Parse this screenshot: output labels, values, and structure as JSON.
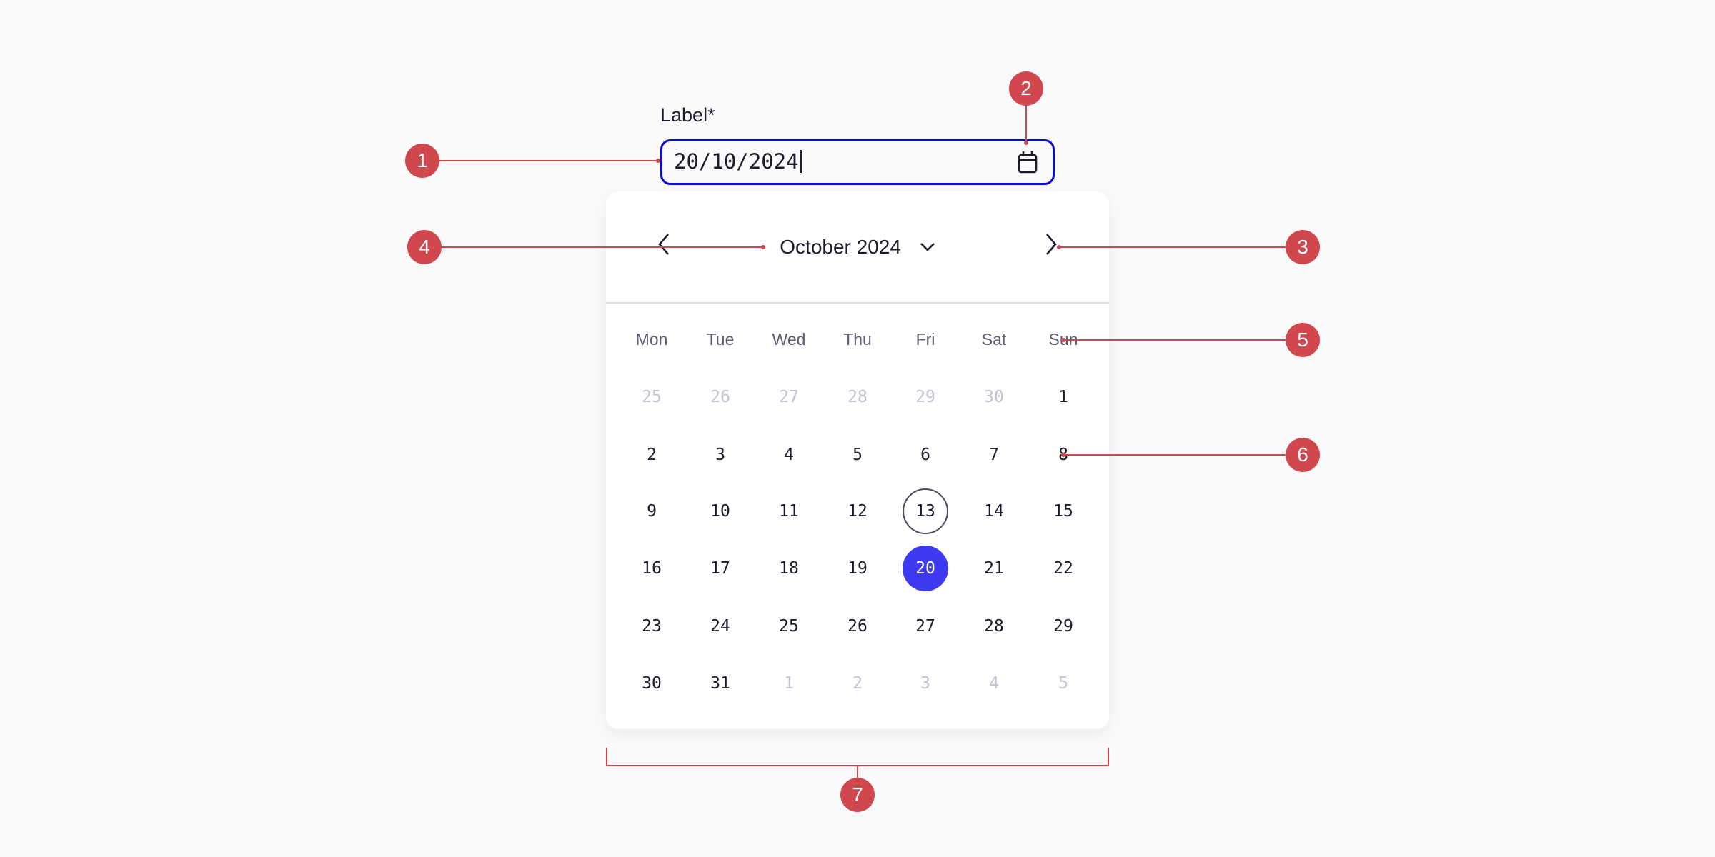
{
  "field": {
    "label": "Label*",
    "value": "20/10/2024",
    "icon": "calendar-icon"
  },
  "calendar": {
    "month_label": "October 2024",
    "prev_icon": "chevron-left-icon",
    "next_icon": "chevron-right-icon",
    "dropdown_icon": "chevron-down-icon",
    "weekdays": [
      "Mon",
      "Tue",
      "Wed",
      "Thu",
      "Fri",
      "Sat",
      "Sun"
    ],
    "weeks": [
      [
        "25",
        "26",
        "27",
        "28",
        "29",
        "30",
        "1"
      ],
      [
        "2",
        "3",
        "4",
        "5",
        "6",
        "7",
        "8"
      ],
      [
        "9",
        "10",
        "11",
        "12",
        "13",
        "14",
        "15"
      ],
      [
        "16",
        "17",
        "18",
        "19",
        "20",
        "21",
        "22"
      ],
      [
        "23",
        "24",
        "25",
        "26",
        "27",
        "28",
        "29"
      ],
      [
        "30",
        "31",
        "1",
        "2",
        "3",
        "4",
        "5"
      ]
    ],
    "today": "13",
    "selected": "20",
    "selected_color": "#3d3af2",
    "focus_color": "#0a0ad6"
  },
  "annotations": [
    "1",
    "2",
    "3",
    "4",
    "5",
    "6",
    "7"
  ],
  "annotation_color": "#d0474d"
}
